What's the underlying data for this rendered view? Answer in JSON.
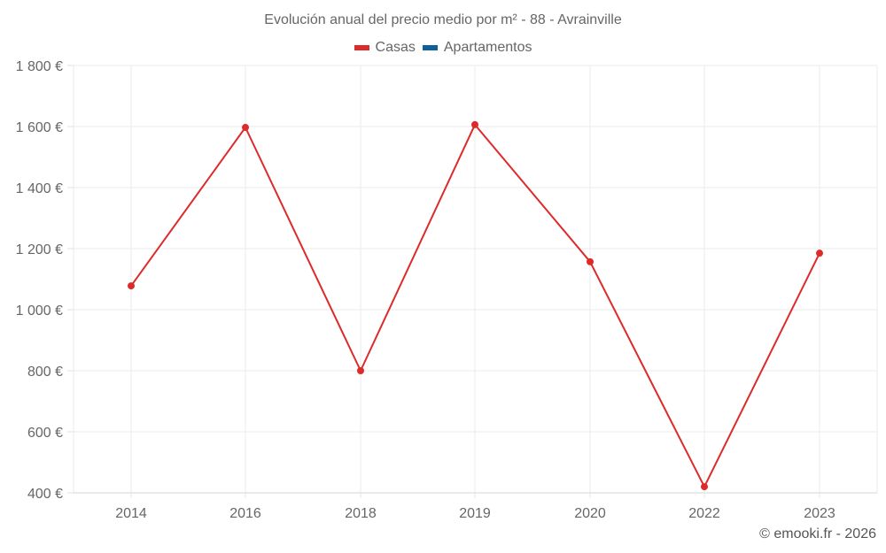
{
  "chart_data": {
    "type": "line",
    "title": "Evolución anual del precio medio por m² - 88 - Avrainville",
    "categories": [
      "2014",
      "2016",
      "2018",
      "2019",
      "2020",
      "2022",
      "2023"
    ],
    "series": [
      {
        "name": "Casas",
        "color": "#dd2a2a",
        "values": [
          1078,
          1597,
          800,
          1606,
          1157,
          420,
          1185
        ]
      },
      {
        "name": "Apartamentos",
        "color": "#0f5f9a",
        "values": []
      }
    ],
    "xlabel": "",
    "ylabel": "",
    "ylim": [
      400,
      1800
    ],
    "yticks": [
      400,
      600,
      800,
      1000,
      1200,
      1400,
      1600,
      1800
    ],
    "ytick_labels": [
      "400 €",
      "600 €",
      "800 €",
      "1 000 €",
      "1 200 €",
      "1 400 €",
      "1 600 €",
      "1 800 €"
    ],
    "grid": true,
    "legend_position": "top-center"
  },
  "header": {
    "title": "Evolución anual del precio medio por m² - 88 - Avrainville"
  },
  "legend": {
    "items": [
      {
        "label": "Casas",
        "color": "#dd2a2a"
      },
      {
        "label": "Apartamentos",
        "color": "#0f5f9a"
      }
    ]
  },
  "footer": {
    "credit": "© emooki.fr - 2026"
  }
}
